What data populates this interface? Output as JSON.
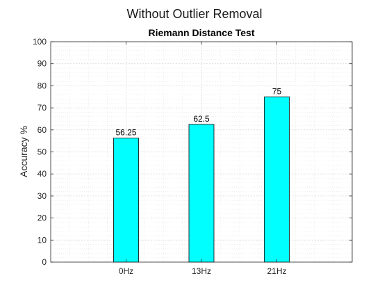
{
  "figure": {
    "suptitle": "Without Outlier Removal"
  },
  "chart_data": {
    "type": "bar",
    "title": "Riemann Distance Test",
    "xlabel": "",
    "ylabel": "Accuracy %",
    "categories": [
      "0Hz",
      "13Hz",
      "21Hz"
    ],
    "values": [
      56.25,
      62.5,
      75
    ],
    "data_labels": [
      "56.25",
      "62.5",
      "75"
    ],
    "ylim": [
      0,
      100
    ],
    "yticks": [
      0,
      10,
      20,
      30,
      40,
      50,
      60,
      70,
      80,
      90,
      100
    ],
    "grid": true,
    "minor_grid": true,
    "bar_color": "#00ffff",
    "edge_color": "#000000"
  }
}
